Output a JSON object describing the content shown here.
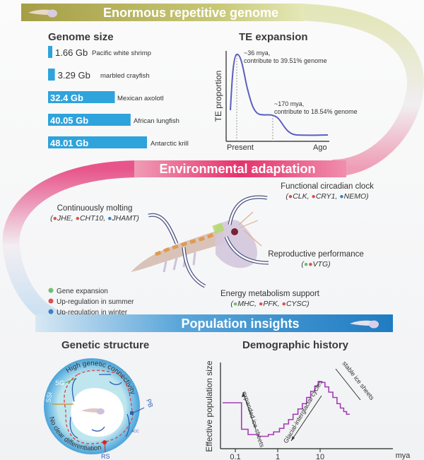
{
  "banners": {
    "genome": "Enormous repetitive genome",
    "adaptation": "Environmental adaptation",
    "population": "Population insights"
  },
  "colors": {
    "genome_banner": "#a9a34c",
    "adaptation_banner": "#e43a6f",
    "population_banner": "#2d86c9",
    "bar": "#2ea3dc",
    "gene_expansion": "#6cc070",
    "up_summer": "#d9534f",
    "up_winter": "#3b82c4",
    "te_curve": "#5a5fc0",
    "ne_curve": "#a23cb4"
  },
  "genome_size": {
    "title": "Genome size",
    "unit": "Gb",
    "items": [
      {
        "value_label": "1.66 Gb",
        "value": 1.66,
        "species": "Pacific white shrimp"
      },
      {
        "value_label": "3.29 Gb",
        "value": 3.29,
        "species": "marbled crayfish"
      },
      {
        "value_label": "32.4 Gb",
        "value": 32.4,
        "species": "Mexican axolotl"
      },
      {
        "value_label": "40.05 Gb",
        "value": 40.05,
        "species": "African lungfish"
      },
      {
        "value_label": "48.01 Gb",
        "value": 48.01,
        "species": "Antarctic krill"
      }
    ]
  },
  "te_expansion": {
    "title": "TE expansion",
    "ylabel": "TE proportion",
    "x_start": "Present",
    "x_end": "Ago",
    "peak1": {
      "line1": "~36 mya,",
      "line2": "contribute to 39.51% genome"
    },
    "peak2": {
      "line1": "~170 mya,",
      "line2": "contribute to 18.54% genome"
    }
  },
  "adaptation": {
    "molting": {
      "title": "Continuously molting",
      "genes": [
        {
          "name": "JHE",
          "type": "up_summer"
        },
        {
          "name": "CHT10",
          "type": "up_summer"
        },
        {
          "name": "JHAMT",
          "type": "up_winter"
        }
      ]
    },
    "circadian": {
      "title": "Functional circadian clock",
      "genes": [
        {
          "name": "CLK",
          "type": "up_summer"
        },
        {
          "name": "CRY1",
          "type": "up_summer"
        },
        {
          "name": "NEMO",
          "type": "up_winter"
        }
      ]
    },
    "reproductive": {
      "title": "Reproductive performance",
      "genes": [
        {
          "name": "VTG",
          "type": "gene_expansion+up_summer"
        }
      ]
    },
    "energy": {
      "title": "Energy metabolism support",
      "genes": [
        {
          "name": "MHC",
          "type": "gene_expansion"
        },
        {
          "name": "PFK",
          "type": "up_summer"
        },
        {
          "name": "CYSC",
          "type": "up_summer"
        }
      ]
    },
    "legend": [
      "Gene expansion",
      "Up-regulation in summer",
      "Up-regulation in winter"
    ]
  },
  "genetic_structure": {
    "title": "Genetic structure",
    "top_arc": "High genetic connectivity",
    "bottom_arc": "No clear differentiation",
    "sites": [
      "SG",
      "SSI",
      "PB",
      "RS"
    ],
    "current": "ACC"
  },
  "demographic_history": {
    "title": "Demographic history",
    "ylabel": "Effective population size",
    "x_unit": "mya",
    "x_ticks": [
      "0.1",
      "1",
      "10"
    ],
    "annotations": [
      "expanded ice sheets",
      "Glacial-interglacial cycles",
      "stable ice sheets"
    ]
  },
  "chart_data": {
    "type": "line",
    "xlabel": "mya",
    "ylabel": "Effective population size",
    "x_scale": "log",
    "x_ticks": [
      0.1,
      1,
      10
    ],
    "step": true,
    "points": [
      [
        0.05,
        0.52
      ],
      [
        0.14,
        0.22
      ],
      [
        0.2,
        0.16
      ],
      [
        0.35,
        0.14
      ],
      [
        0.6,
        0.16
      ],
      [
        0.8,
        0.19
      ],
      [
        1.1,
        0.23
      ],
      [
        1.4,
        0.28
      ],
      [
        1.8,
        0.33
      ],
      [
        2.3,
        0.39
      ],
      [
        3,
        0.45
      ],
      [
        3.8,
        0.51
      ],
      [
        4.8,
        0.58
      ],
      [
        6,
        0.65
      ],
      [
        7.5,
        0.71
      ],
      [
        9,
        0.76
      ],
      [
        11,
        0.75
      ],
      [
        13,
        0.7
      ],
      [
        16,
        0.64
      ],
      [
        20,
        0.58
      ],
      [
        25,
        0.51
      ],
      [
        30,
        0.46
      ],
      [
        36,
        0.42
      ],
      [
        42,
        0.39
      ],
      [
        50,
        0.39
      ]
    ]
  }
}
